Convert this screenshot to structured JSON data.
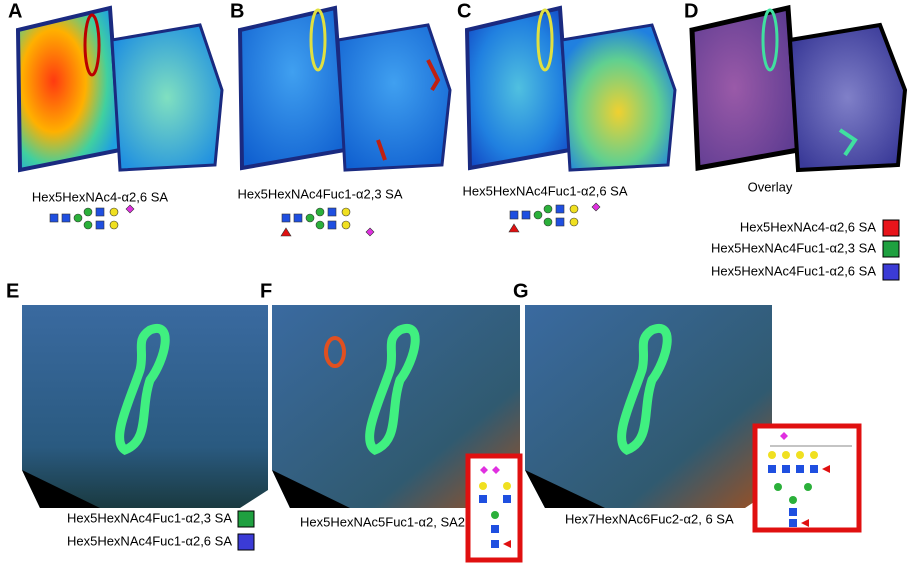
{
  "panels": [
    {
      "letter": "A",
      "caption": "Hex5HexNAc4-α2,6 SA"
    },
    {
      "letter": "B",
      "caption": "Hex5HexNAc4Fuc1-α2,3 SA"
    },
    {
      "letter": "C",
      "caption": "Hex5HexNAc4Fuc1-α2,6 SA"
    },
    {
      "letter": "D",
      "caption": "Overlay"
    },
    {
      "letter": "E"
    },
    {
      "letter": "F",
      "caption": "Hex5HexNAc5Fuc1-α2, SA2"
    },
    {
      "letter": "G",
      "caption": "Hex7HexNAc6Fuc2-α2, 6 SA"
    }
  ],
  "overlay_legend": [
    {
      "label": "Hex5HexNAc4-α2,6 SA",
      "color": "#e8141b"
    },
    {
      "label": "Hex5HexNAc4Fuc1-α2,3 SA",
      "color": "#1fa040"
    },
    {
      "label": "Hex5HexNAc4Fuc1-α2,6 SA",
      "color": "#3b3bd6"
    }
  ],
  "e_legend": [
    {
      "label": "Hex5HexNAc4Fuc1-α2,3 SA",
      "color": "#1fa040"
    },
    {
      "label": "Hex5HexNAc4Fuc1-α2,6 SA",
      "color": "#3b3bd6"
    }
  ]
}
